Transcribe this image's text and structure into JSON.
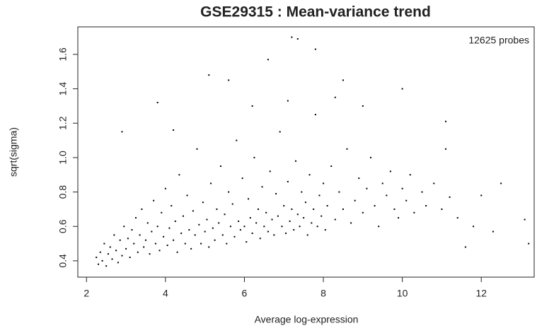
{
  "chart_data": {
    "type": "scatter",
    "title": "GSE29315 : Mean-variance trend",
    "xlabel": "Average log-expression",
    "ylabel": "sqrt(sigma)",
    "annotation": "12625 probes",
    "color": "#000000",
    "xlim": [
      1.78,
      13.34
    ],
    "ylim": [
      0.305,
      1.76
    ],
    "xticks": [
      2,
      4,
      6,
      8,
      10,
      12
    ],
    "yticks": [
      0.4,
      0.6,
      0.8,
      {
        "value": 1,
        "label": "1.0"
      },
      1.2,
      1.4,
      1.6
    ],
    "x": [
      2.25,
      2.3,
      2.35,
      2.4,
      2.45,
      2.5,
      2.55,
      2.6,
      2.65,
      2.7,
      2.75,
      2.8,
      2.85,
      2.9,
      2.95,
      3.0,
      3.05,
      3.1,
      3.15,
      3.2,
      3.25,
      3.3,
      3.35,
      3.4,
      3.45,
      3.5,
      3.55,
      3.6,
      3.65,
      3.7,
      3.75,
      3.8,
      3.85,
      3.9,
      3.95,
      4.0,
      4.05,
      4.1,
      4.15,
      4.2,
      4.25,
      4.3,
      4.35,
      4.4,
      4.45,
      4.5,
      4.55,
      4.6,
      4.65,
      4.7,
      4.75,
      4.8,
      4.85,
      4.9,
      4.95,
      5.0,
      5.05,
      5.1,
      5.15,
      5.2,
      5.25,
      5.3,
      5.35,
      5.4,
      5.45,
      5.5,
      5.55,
      5.6,
      5.65,
      5.7,
      5.75,
      5.8,
      5.85,
      5.9,
      5.95,
      6.0,
      6.05,
      6.1,
      6.15,
      6.2,
      6.25,
      6.3,
      6.35,
      6.4,
      6.45,
      6.5,
      6.55,
      6.6,
      6.65,
      6.7,
      6.75,
      6.8,
      6.85,
      6.9,
      6.95,
      7.0,
      7.05,
      7.1,
      7.15,
      7.2,
      7.25,
      7.3,
      7.35,
      7.4,
      7.45,
      7.5,
      7.55,
      7.6,
      7.65,
      7.7,
      7.75,
      7.8,
      7.85,
      7.9,
      7.95,
      8.0,
      8.05,
      8.1,
      8.2,
      8.3,
      8.4,
      8.5,
      8.6,
      8.7,
      8.8,
      8.9,
      9.0,
      9.1,
      9.2,
      9.3,
      9.4,
      9.5,
      9.6,
      9.7,
      9.8,
      9.9,
      10.0,
      10.1,
      10.2,
      10.3,
      10.5,
      10.6,
      10.8,
      11.0,
      11.1,
      11.2,
      11.4,
      11.6,
      11.8,
      12.0,
      12.3,
      12.5,
      13.1,
      13.2,
      5.1,
      5.6,
      6.6,
      7.2,
      7.35,
      7.8,
      8.5,
      10.0,
      3.8,
      11.1,
      2.9,
      4.2,
      9.0,
      8.3,
      7.1,
      6.2
    ],
    "values": [
      0.42,
      0.38,
      0.45,
      0.4,
      0.5,
      0.37,
      0.44,
      0.48,
      0.41,
      0.55,
      0.46,
      0.39,
      0.52,
      0.43,
      0.6,
      0.47,
      0.53,
      0.42,
      0.58,
      0.5,
      0.65,
      0.45,
      0.55,
      0.7,
      0.48,
      0.52,
      0.62,
      0.44,
      0.57,
      0.75,
      0.5,
      0.6,
      0.46,
      0.68,
      0.54,
      0.82,
      0.49,
      0.59,
      0.72,
      0.52,
      0.63,
      0.45,
      0.9,
      0.56,
      0.66,
      0.5,
      0.78,
      0.58,
      0.47,
      0.69,
      0.55,
      1.05,
      0.61,
      0.5,
      0.74,
      0.57,
      0.64,
      0.48,
      0.85,
      0.59,
      0.52,
      0.7,
      0.62,
      0.95,
      0.55,
      0.67,
      0.5,
      0.8,
      0.6,
      0.73,
      0.54,
      1.1,
      0.63,
      0.58,
      0.88,
      0.6,
      0.51,
      0.76,
      0.65,
      0.56,
      1.0,
      0.62,
      0.7,
      0.53,
      0.83,
      0.6,
      0.68,
      0.57,
      0.92,
      0.64,
      0.55,
      0.79,
      0.66,
      1.15,
      0.6,
      0.72,
      0.56,
      0.86,
      0.63,
      0.7,
      0.58,
      0.98,
      0.67,
      0.6,
      0.8,
      0.65,
      0.74,
      0.55,
      0.9,
      0.62,
      0.7,
      1.25,
      0.6,
      0.78,
      0.66,
      0.85,
      0.58,
      0.72,
      0.95,
      0.64,
      0.8,
      0.7,
      1.05,
      0.62,
      0.75,
      0.88,
      0.68,
      0.82,
      1.0,
      0.72,
      0.6,
      0.85,
      0.78,
      0.92,
      0.7,
      0.65,
      0.82,
      0.75,
      0.9,
      0.68,
      0.8,
      0.72,
      0.85,
      0.7,
      1.05,
      0.77,
      0.65,
      0.48,
      0.6,
      0.78,
      0.57,
      0.85,
      0.64,
      0.5,
      1.48,
      1.45,
      1.57,
      1.7,
      1.69,
      1.63,
      1.45,
      1.4,
      1.32,
      1.21,
      1.15,
      1.16,
      1.3,
      1.35,
      1.33,
      1.3
    ]
  }
}
